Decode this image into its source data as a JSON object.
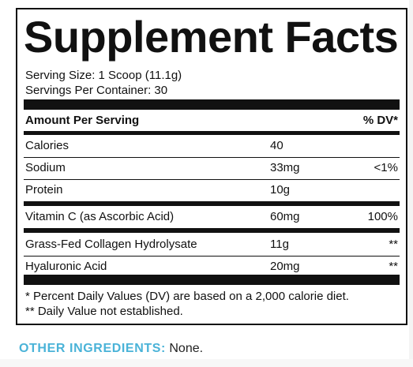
{
  "label": {
    "title": "Supplement Facts",
    "serving_size": "Serving Size: 1 Scoop (11.1g)",
    "servings_per_container": "Servings Per Container: 30",
    "header_amount": "Amount Per Serving",
    "header_dv": "% DV*",
    "rows": [
      {
        "name": "Calories",
        "amount": "40",
        "dv": ""
      },
      {
        "name": "Sodium",
        "amount": "33mg",
        "dv": "<1%"
      },
      {
        "name": "Protein",
        "amount": "10g",
        "dv": ""
      },
      {
        "name": "Vitamin C (as Ascorbic Acid)",
        "amount": "60mg",
        "dv": "100%"
      },
      {
        "name": "Grass-Fed Collagen Hydrolysate",
        "amount": "11g",
        "dv": "**"
      },
      {
        "name": "Hyaluronic Acid",
        "amount": "20mg",
        "dv": "**"
      }
    ],
    "footnote_1": "* Percent Daily Values (DV) are based on a 2,000 calorie diet.",
    "footnote_2": "** Daily Value not established."
  },
  "other_ingredients": {
    "label": "OTHER INGREDIENTS:",
    "value": " None."
  },
  "colors": {
    "accent": "#4ab3d8",
    "ink": "#111111"
  }
}
